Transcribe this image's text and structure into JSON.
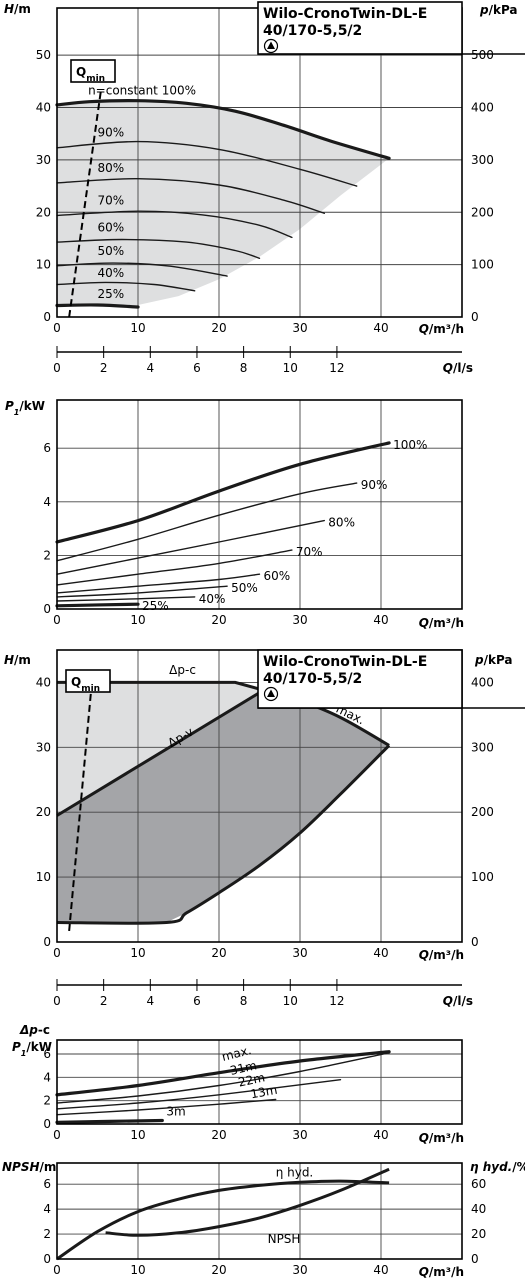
{
  "header": {
    "title_line1": "Wilo-CronoTwin-DL-E",
    "title_line2": "40/170-5,5/2"
  },
  "labels": {
    "H": "H/m",
    "p": "p/kPa",
    "Qm3h": "Q/m³/h",
    "Qls": "Q/l/s",
    "P1": "P1/kW",
    "dpc": "Δp-c",
    "NPSH": "NPSH/m",
    "eta": "η hyd./%",
    "qmin": "Qmin",
    "n_constant": "n=constant 100%"
  },
  "colors": {
    "light_fill": "#dedfe0",
    "dark_fill": "#a4a5a8",
    "line": "#1a1a1a",
    "grid": "#444444"
  },
  "chart_data": [
    {
      "id": "hq_speed",
      "type": "line",
      "x_unit": "m³/h",
      "xlim": [
        0,
        50
      ],
      "x_ticks": [
        0,
        10,
        20,
        30,
        40
      ],
      "ylim": [
        0,
        59
      ],
      "y_ticks": [
        0,
        10,
        20,
        30,
        40,
        50
      ],
      "y2_ticks": [
        0,
        100,
        200,
        300,
        400,
        500
      ],
      "series": [
        {
          "name": "100%",
          "x": [
            0,
            4,
            10,
            16,
            22,
            28,
            34,
            41
          ],
          "y": [
            40.5,
            41.1,
            41.3,
            40.8,
            39.3,
            36.6,
            33.5,
            30.3
          ],
          "bold": true
        },
        {
          "name": "90%",
          "x": [
            0,
            10,
            20,
            30,
            37
          ],
          "y": [
            32.3,
            33.5,
            32.0,
            28.2,
            25.0
          ]
        },
        {
          "name": "80%",
          "x": [
            0,
            10,
            20,
            28,
            33
          ],
          "y": [
            25.6,
            26.4,
            25.2,
            22.3,
            19.8
          ]
        },
        {
          "name": "70%",
          "x": [
            0,
            10,
            18,
            25,
            29
          ],
          "y": [
            19.4,
            20.2,
            19.5,
            17.5,
            15.2
          ]
        },
        {
          "name": "60%",
          "x": [
            0,
            8,
            16,
            22,
            25
          ],
          "y": [
            14.3,
            14.8,
            14.3,
            12.7,
            11.2
          ]
        },
        {
          "name": "50%",
          "x": [
            0,
            7,
            14,
            21
          ],
          "y": [
            9.8,
            10.3,
            9.7,
            7.8
          ]
        },
        {
          "name": "40%",
          "x": [
            0,
            6,
            12,
            17
          ],
          "y": [
            6.2,
            6.6,
            6.2,
            5.0
          ]
        },
        {
          "name": "25%",
          "x": [
            0,
            5,
            10
          ],
          "y": [
            2.2,
            2.3,
            1.9
          ],
          "bold": true
        }
      ],
      "region_lower_x": [
        10,
        15,
        20,
        25,
        30,
        35,
        41
      ],
      "region_lower_y": [
        2.3,
        4.0,
        7.2,
        11.5,
        16.8,
        23.2,
        30.3
      ],
      "qmin_line": {
        "x": [
          1.5,
          5.4
        ],
        "y": [
          0,
          43
        ]
      },
      "speed_labels": [
        {
          "text": "90%",
          "x": 5,
          "y": 34.5
        },
        {
          "text": "80%",
          "x": 5,
          "y": 27.7
        },
        {
          "text": "70%",
          "x": 5,
          "y": 21.5
        },
        {
          "text": "60%",
          "x": 5,
          "y": 16.3
        },
        {
          "text": "50%",
          "x": 5,
          "y": 11.8
        },
        {
          "text": "40%",
          "x": 5,
          "y": 7.6
        },
        {
          "text": "25%",
          "x": 5,
          "y": 3.6
        }
      ]
    },
    {
      "id": "q_ls_scale",
      "type": "table",
      "ticks": [
        0,
        2,
        4,
        6,
        8,
        10,
        12
      ],
      "unit": "l/s"
    },
    {
      "id": "power_speed",
      "type": "line",
      "x_unit": "m³/h",
      "xlim": [
        0,
        50
      ],
      "x_ticks": [
        0,
        10,
        20,
        30,
        40
      ],
      "ylim": [
        0,
        7.8
      ],
      "y_ticks": [
        0,
        2,
        4,
        6
      ],
      "series": [
        {
          "name": "100%",
          "x": [
            0,
            10,
            20,
            30,
            41
          ],
          "y": [
            2.5,
            3.3,
            4.4,
            5.4,
            6.2
          ],
          "bold": true
        },
        {
          "name": "90%",
          "x": [
            0,
            10,
            20,
            30,
            37
          ],
          "y": [
            1.8,
            2.6,
            3.5,
            4.3,
            4.7
          ]
        },
        {
          "name": "80%",
          "x": [
            0,
            10,
            20,
            33
          ],
          "y": [
            1.3,
            1.9,
            2.5,
            3.3
          ]
        },
        {
          "name": "70%",
          "x": [
            0,
            10,
            20,
            29
          ],
          "y": [
            0.9,
            1.3,
            1.7,
            2.2
          ]
        },
        {
          "name": "60%",
          "x": [
            0,
            10,
            20,
            25
          ],
          "y": [
            0.6,
            0.85,
            1.1,
            1.3
          ]
        },
        {
          "name": "50%",
          "x": [
            0,
            10,
            21
          ],
          "y": [
            0.45,
            0.6,
            0.85
          ]
        },
        {
          "name": "40%",
          "x": [
            0,
            10,
            17
          ],
          "y": [
            0.3,
            0.38,
            0.45
          ]
        },
        {
          "name": "25%",
          "x": [
            0,
            10
          ],
          "y": [
            0.12,
            0.18
          ],
          "bold": true
        }
      ]
    },
    {
      "id": "hq_control",
      "type": "area",
      "x_unit": "m³/h",
      "xlim": [
        0,
        50
      ],
      "x_ticks": [
        0,
        10,
        20,
        30,
        40
      ],
      "ylim": [
        0,
        45
      ],
      "y_ticks": [
        0,
        10,
        20,
        30,
        40
      ],
      "y2_ticks": [
        0,
        100,
        200,
        300,
        400
      ],
      "dpc": {
        "x": [
          0,
          22,
          25.5
        ],
        "y": [
          40,
          40,
          38.8
        ]
      },
      "dpv": {
        "x": [
          0,
          25.5
        ],
        "y": [
          19.5,
          38.8
        ]
      },
      "max": {
        "x": [
          25.5,
          30,
          35,
          41
        ],
        "y": [
          38.8,
          37.2,
          34.6,
          30.3
        ]
      },
      "bottom": {
        "x": [
          0,
          13.5,
          16,
          20,
          25,
          30,
          35,
          41
        ],
        "y": [
          3.0,
          3.0,
          4.5,
          7.6,
          11.8,
          16.8,
          22.8,
          30.3
        ]
      },
      "qmin_line": {
        "x": [
          1.5,
          4.3
        ],
        "y": [
          1.7,
          40
        ]
      },
      "curve_labels": [
        {
          "text": "Δp-c",
          "x": 15.5,
          "y": 41.3
        },
        {
          "text": "Δp-v",
          "x": 15.5,
          "y": 31.0,
          "angle": -30
        },
        {
          "text": "max.",
          "x": 36,
          "y": 34.5,
          "angle": 26
        }
      ]
    },
    {
      "id": "q_ls_scale_2",
      "type": "table",
      "ticks": [
        0,
        2,
        4,
        6,
        8,
        10,
        12
      ],
      "unit": "l/s"
    },
    {
      "id": "power_control",
      "type": "line",
      "x_unit": "m³/h",
      "xlim": [
        0,
        50
      ],
      "x_ticks": [
        0,
        10,
        20,
        30,
        40
      ],
      "ylim": [
        0,
        7.2
      ],
      "y_ticks": [
        0,
        2,
        4,
        6
      ],
      "series": [
        {
          "name": "max.",
          "x": [
            0,
            10,
            20,
            30,
            41
          ],
          "y": [
            2.5,
            3.3,
            4.4,
            5.4,
            6.2
          ],
          "bold": true
        },
        {
          "name": "31m",
          "x": [
            0,
            10,
            20,
            30,
            41
          ],
          "y": [
            1.8,
            2.4,
            3.3,
            4.5,
            6.1
          ]
        },
        {
          "name": "22m",
          "x": [
            0,
            10,
            20,
            35
          ],
          "y": [
            1.3,
            1.8,
            2.5,
            3.8
          ]
        },
        {
          "name": "13m",
          "x": [
            0,
            10,
            20,
            27
          ],
          "y": [
            0.8,
            1.2,
            1.7,
            2.1
          ]
        },
        {
          "name": "3m",
          "x": [
            0,
            13
          ],
          "y": [
            0.15,
            0.3
          ],
          "bold": true
        }
      ],
      "curve_labels": [
        {
          "text": "max.",
          "x": 20.5,
          "y": 5.4,
          "angle": -14
        },
        {
          "text": "31m",
          "x": 21.5,
          "y": 4.2,
          "angle": -13
        },
        {
          "text": "22m",
          "x": 22.5,
          "y": 3.2,
          "angle": -12
        },
        {
          "text": "13m",
          "x": 24,
          "y": 2.2,
          "angle": -10
        },
        {
          "text": "3m",
          "x": 13.5,
          "y": 0.75,
          "angle": 0
        }
      ]
    },
    {
      "id": "npsh_eta",
      "type": "line",
      "x_unit": "m³/h",
      "xlim": [
        0,
        50
      ],
      "x_ticks": [
        0,
        10,
        20,
        30,
        40
      ],
      "ylim": [
        0,
        7.7
      ],
      "y_ticks": [
        0,
        2,
        4,
        6
      ],
      "y2_ticks": [
        0,
        20,
        40,
        60
      ],
      "series": [
        {
          "name": "η hyd.",
          "x": [
            0,
            5,
            10,
            15,
            20,
            25,
            30,
            35,
            41
          ],
          "y": [
            0,
            2.2,
            3.8,
            4.8,
            5.5,
            5.9,
            6.15,
            6.25,
            6.1
          ]
        },
        {
          "name": "NPSH",
          "x": [
            6,
            10,
            15,
            20,
            25,
            30,
            35,
            41
          ],
          "y": [
            2.1,
            1.9,
            2.1,
            2.6,
            3.3,
            4.3,
            5.5,
            7.2
          ]
        }
      ],
      "curve_labels": [
        {
          "text": "η hyd.",
          "x": 27,
          "y": 6.6
        },
        {
          "text": "NPSH",
          "x": 26,
          "y": 1.3
        }
      ]
    }
  ]
}
